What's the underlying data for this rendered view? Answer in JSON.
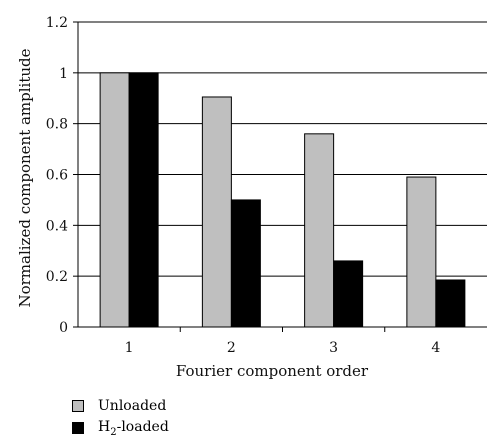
{
  "chart_data": {
    "type": "bar",
    "categories": [
      "1",
      "2",
      "3",
      "4"
    ],
    "series": [
      {
        "name": "Unloaded",
        "color": "#bfbfbf",
        "values": [
          1.0,
          0.905,
          0.76,
          0.59
        ]
      },
      {
        "name": "H2-loaded",
        "color": "#000000",
        "values": [
          1.0,
          0.5,
          0.26,
          0.185
        ]
      }
    ],
    "xlabel": "Fourier component order",
    "ylabel": "Normalized component amplitude",
    "ylim": [
      0,
      1.2
    ],
    "yticks": [
      "0",
      "0.2",
      "0.4",
      "0.6",
      "0.8",
      "1",
      "1.2"
    ],
    "grid": true,
    "legend_placement": "bottom-left"
  },
  "legend": {
    "unloaded_label": "Unloaded",
    "h2_prefix": "H",
    "h2_sub": "2",
    "h2_suffix": "-loaded"
  }
}
